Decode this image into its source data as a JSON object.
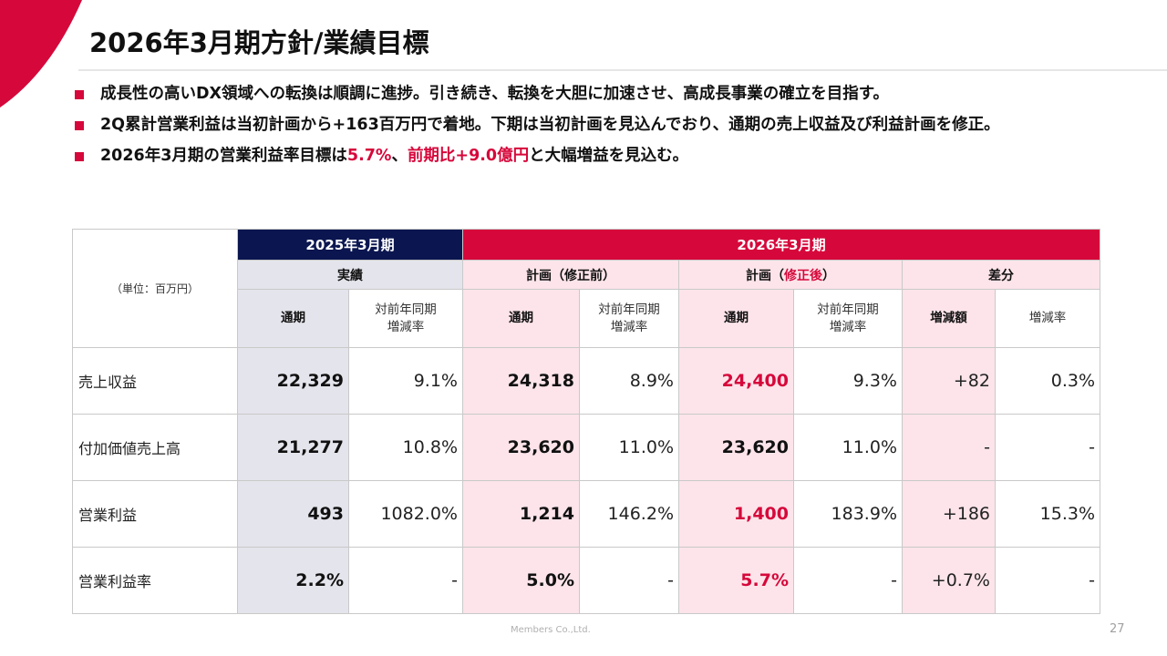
{
  "slide": {
    "title": "2026年3月期方針/業績目標",
    "page_number": "27",
    "footer": "Members Co.,Ltd.",
    "accent_color": "#d6083b",
    "navy_color": "#0b1650"
  },
  "bullets": [
    {
      "parts": [
        "成長性の高いDX領域への転換は順調に進捗。引き続き、転換を大胆に加速させ、高成長事業の確立を目指す。"
      ]
    },
    {
      "parts": [
        "2Q累計営業利益は当初計画から+163百万円で着地。下期は当初計画を見込んでおり、通期の売上収益及び利益計画を修正。"
      ]
    },
    {
      "parts": [
        "2026年3月期の営業利益率目標は",
        "5.7%",
        "、",
        "前期比+9.0億円",
        "と大幅増益を見込む。"
      ]
    }
  ],
  "table": {
    "unit_label": "（単位：百万円）",
    "period_2025": "2025年3月期",
    "period_2026": "2026年3月期",
    "group_actual": "実績",
    "group_plan_before": "計画（修正前）",
    "group_plan_after_prefix": "計画（",
    "group_plan_after_hl": "修正後",
    "group_plan_after_suffix": "）",
    "group_diff": "差分",
    "col_full_year": "通期",
    "col_yoy_1": "対前年同期",
    "col_yoy_2": "増減率",
    "col_change_amount": "増減額",
    "col_change_rate": "増減率",
    "rows": [
      {
        "label": "売上収益",
        "actual": "22,329",
        "actual_yoy": "9.1%",
        "before": "24,318",
        "before_yoy": "8.9%",
        "after": "24,400",
        "after_yoy": "9.3%",
        "diff_amount": "+82",
        "diff_rate": "0.3%"
      },
      {
        "label": "付加価値売上高",
        "actual": "21,277",
        "actual_yoy": "10.8%",
        "before": "23,620",
        "before_yoy": "11.0%",
        "after": "23,620",
        "after_yoy": "11.0%",
        "diff_amount": "-",
        "diff_rate": "-"
      },
      {
        "label": "営業利益",
        "actual": "493",
        "actual_yoy": "1082.0%",
        "before": "1,214",
        "before_yoy": "146.2%",
        "after": "1,400",
        "after_yoy": "183.9%",
        "diff_amount": "+186",
        "diff_rate": "15.3%"
      },
      {
        "label": "営業利益率",
        "actual": "2.2%",
        "actual_yoy": "-",
        "before": "5.0%",
        "before_yoy": "-",
        "after": "5.7%",
        "after_yoy": "-",
        "diff_amount": "+0.7%",
        "diff_rate": "-"
      }
    ]
  }
}
